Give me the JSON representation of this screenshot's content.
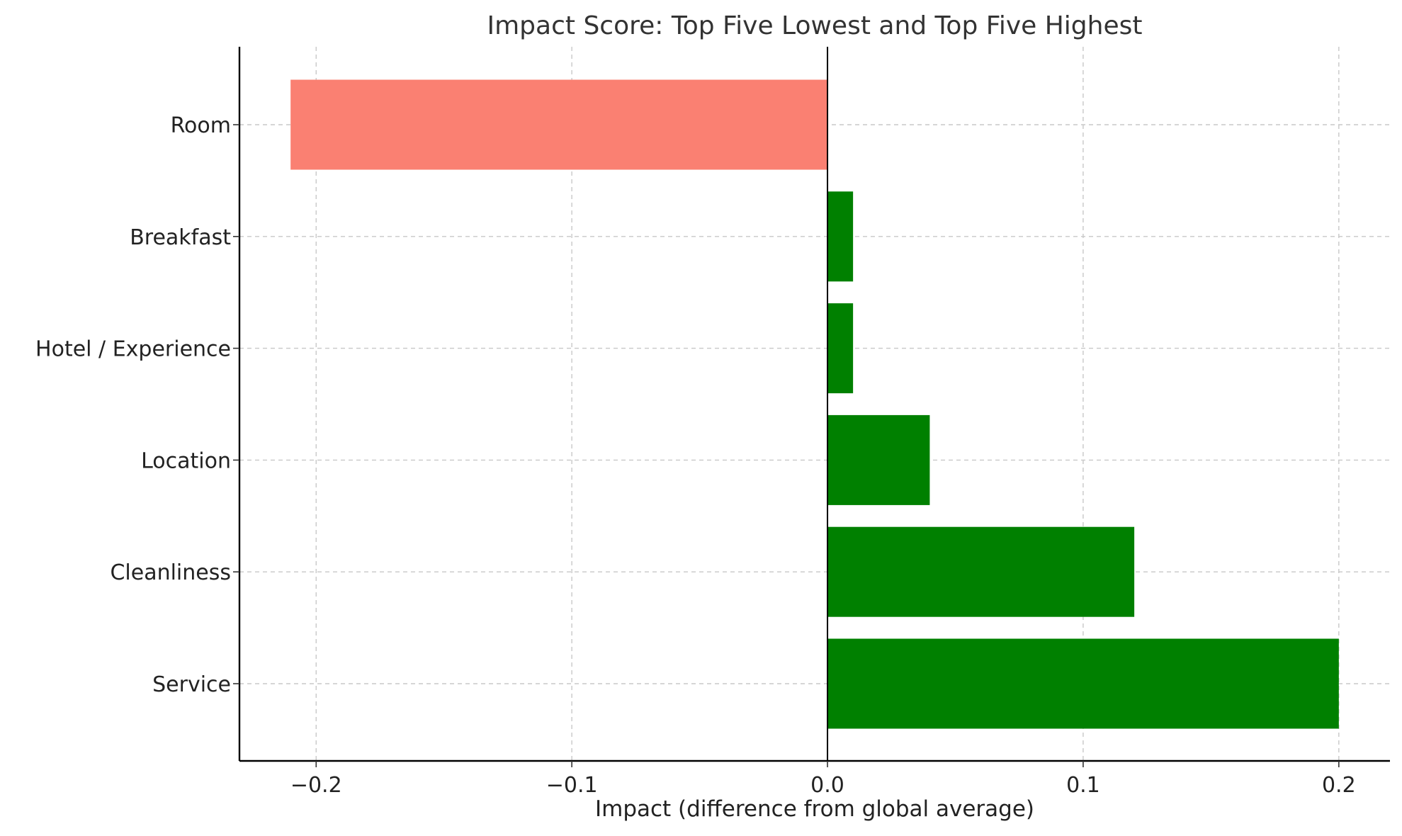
{
  "chart_data": {
    "type": "bar",
    "orientation": "horizontal",
    "title": "Impact Score: Top Five Lowest and Top Five Highest",
    "xlabel": "Impact (difference from global average)",
    "ylabel": "",
    "categories": [
      "Room",
      "Breakfast",
      "Hotel / Experience",
      "Location",
      "Cleanliness",
      "Service"
    ],
    "values": [
      -0.21,
      0.01,
      0.01,
      0.04,
      0.12,
      0.2
    ],
    "xlim": [
      -0.23,
      0.22
    ],
    "xticks": [
      -0.2,
      -0.1,
      0.0,
      0.1,
      0.2
    ],
    "xtick_labels": [
      "−0.2",
      "−0.1",
      "0.0",
      "0.1",
      "0.2"
    ],
    "colors": {
      "negative": "#fa8072",
      "positive": "#008000",
      "zero_line": "#000000",
      "grid": "#c8c8c8"
    },
    "grid": true,
    "legend": false
  }
}
